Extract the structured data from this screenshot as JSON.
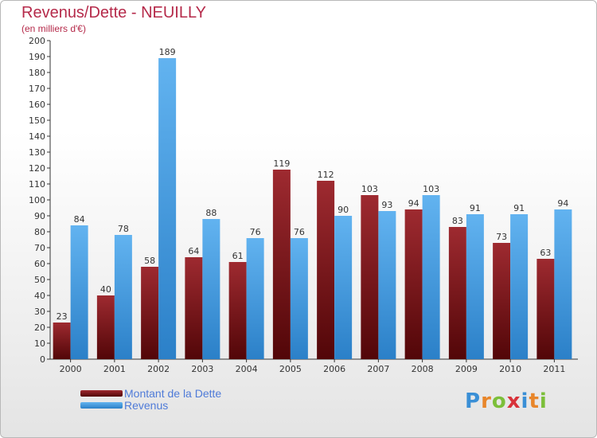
{
  "header": {
    "title": "Revenus/Dette - NEUILLY",
    "subtitle": "(en milliers d'€)"
  },
  "colors": {
    "dette": "#7a1a1e",
    "revenus": "#4f9fe2",
    "title": "#b52a4a",
    "legend_text": "#4f7bd8"
  },
  "chart_data": {
    "type": "bar",
    "title": "Revenus/Dette - NEUILLY",
    "subtitle": "(en milliers d'€)",
    "xlabel": "",
    "ylabel": "",
    "ylim": [
      0,
      200
    ],
    "ytick_step": 10,
    "grid": false,
    "legend_position": "bottom-left",
    "categories": [
      "2000",
      "2001",
      "2002",
      "2003",
      "2004",
      "2005",
      "2006",
      "2007",
      "2008",
      "2009",
      "2010",
      "2011"
    ],
    "series": [
      {
        "name": "Montant de la Dette",
        "values": [
          23,
          40,
          58,
          64,
          61,
          119,
          112,
          103,
          94,
          83,
          73,
          63
        ]
      },
      {
        "name": "Revenus",
        "values": [
          84,
          78,
          189,
          88,
          76,
          76,
          90,
          93,
          103,
          91,
          91,
          94
        ]
      }
    ]
  },
  "legend": {
    "items": [
      {
        "label": "Montant de la Dette"
      },
      {
        "label": "Revenus"
      }
    ]
  },
  "branding": {
    "logo_letters": [
      "P",
      "r",
      "o",
      "x",
      "i",
      "t",
      "i"
    ],
    "logo_colors": [
      "#3a8fd6",
      "#e8862a",
      "#7cbf3a",
      "#d8323a",
      "#3a8fd6",
      "#e8862a",
      "#7cbf3a"
    ]
  }
}
